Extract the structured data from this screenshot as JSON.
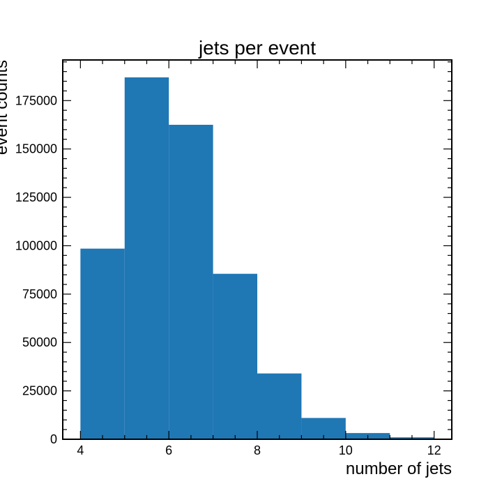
{
  "chart_data": {
    "type": "bar",
    "title": "jets per event",
    "xlabel": "number of jets",
    "ylabel": "event counts",
    "bin_edges": [
      4,
      5,
      6,
      7,
      8,
      9,
      10,
      11,
      12
    ],
    "values": [
      98500,
      187000,
      162500,
      85500,
      34000,
      11000,
      3200,
      1000
    ],
    "xlim": [
      3.6,
      12.4
    ],
    "ylim": [
      0,
      196000
    ],
    "x_major_ticks": [
      4,
      6,
      8,
      10,
      12
    ],
    "x_tick_labels": [
      "4",
      "6",
      "8",
      "10",
      "12"
    ],
    "y_major_ticks": [
      0,
      25000,
      50000,
      75000,
      100000,
      125000,
      150000,
      175000
    ],
    "y_tick_labels": [
      "0",
      "25000",
      "50000",
      "75000",
      "100000",
      "125000",
      "150000",
      "175000"
    ],
    "bar_color": "#1f77b4",
    "grid": false,
    "legend": "none"
  }
}
